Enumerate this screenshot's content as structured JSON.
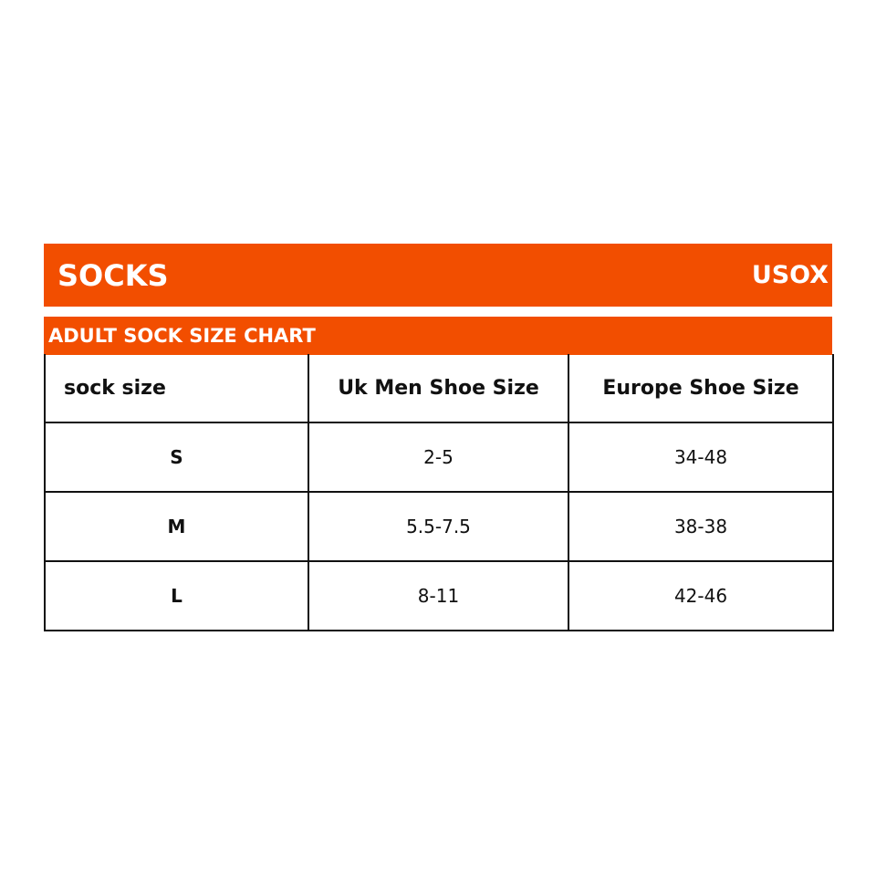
{
  "header": {
    "title": "SOCKS",
    "brand": "USOX",
    "accent_color": "#F24E00"
  },
  "subheader": {
    "title": "ADULT SOCK SIZE CHART"
  },
  "table": {
    "columns": [
      "sock size",
      "Uk Men Shoe Size",
      "Europe Shoe Size"
    ],
    "rows": [
      [
        "S",
        "2-5",
        "34-48"
      ],
      [
        "M",
        "5.5-7.5",
        "38-38"
      ],
      [
        "L",
        "8-11",
        "42-46"
      ]
    ]
  }
}
